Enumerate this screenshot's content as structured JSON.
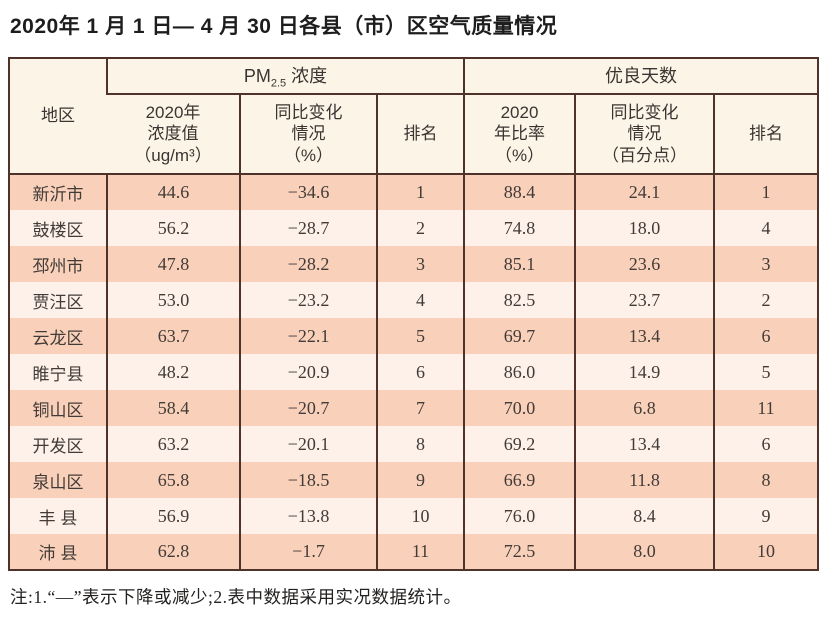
{
  "title": "2020年 1 月 1 日— 4 月 30 日各县（市）区空气质量情况",
  "footnote": "注:1.“—”表示下降或减少;2.表中数据采用实况数据统计。",
  "colors": {
    "border": "#4f332a",
    "header_bg": "#fcf4e6",
    "row_odd_bg": "#f9d0b9",
    "row_even_bg": "#fdf1e9"
  },
  "table": {
    "region_header": "地区",
    "pm25_group": {
      "prefix": "PM",
      "sub": "2.5",
      "suffix": " 浓度"
    },
    "good_days_group": "优良天数",
    "sub_headers": {
      "pm_value": "2020年\n浓度值\n（ug/m³）",
      "pm_change": "同比变化\n情况\n（%）",
      "pm_rank": "排名",
      "gd_ratio": "2020\n年比率\n（%）",
      "gd_change": "同比变化\n情况\n（百分点）",
      "gd_rank": "排名"
    },
    "rows": [
      {
        "region": "新沂市",
        "pm": "44.6",
        "pm_chg": "−34.6",
        "pm_rank": "1",
        "gd": "88.4",
        "gd_chg": "24.1",
        "gd_rank": "1"
      },
      {
        "region": "鼓楼区",
        "pm": "56.2",
        "pm_chg": "−28.7",
        "pm_rank": "2",
        "gd": "74.8",
        "gd_chg": "18.0",
        "gd_rank": "4"
      },
      {
        "region": "邳州市",
        "pm": "47.8",
        "pm_chg": "−28.2",
        "pm_rank": "3",
        "gd": "85.1",
        "gd_chg": "23.6",
        "gd_rank": "3"
      },
      {
        "region": "贾汪区",
        "pm": "53.0",
        "pm_chg": "−23.2",
        "pm_rank": "4",
        "gd": "82.5",
        "gd_chg": "23.7",
        "gd_rank": "2"
      },
      {
        "region": "云龙区",
        "pm": "63.7",
        "pm_chg": "−22.1",
        "pm_rank": "5",
        "gd": "69.7",
        "gd_chg": "13.4",
        "gd_rank": "6"
      },
      {
        "region": "睢宁县",
        "pm": "48.2",
        "pm_chg": "−20.9",
        "pm_rank": "6",
        "gd": "86.0",
        "gd_chg": "14.9",
        "gd_rank": "5"
      },
      {
        "region": "铜山区",
        "pm": "58.4",
        "pm_chg": "−20.7",
        "pm_rank": "7",
        "gd": "70.0",
        "gd_chg": "6.8",
        "gd_rank": "11"
      },
      {
        "region": "开发区",
        "pm": "63.2",
        "pm_chg": "−20.1",
        "pm_rank": "8",
        "gd": "69.2",
        "gd_chg": "13.4",
        "gd_rank": "6"
      },
      {
        "region": "泉山区",
        "pm": "65.8",
        "pm_chg": "−18.5",
        "pm_rank": "9",
        "gd": "66.9",
        "gd_chg": "11.8",
        "gd_rank": "8"
      },
      {
        "region": "丰 县",
        "pm": "56.9",
        "pm_chg": "−13.8",
        "pm_rank": "10",
        "gd": "76.0",
        "gd_chg": "8.4",
        "gd_rank": "9"
      },
      {
        "region": "沛 县",
        "pm": "62.8",
        "pm_chg": "−1.7",
        "pm_rank": "11",
        "gd": "72.5",
        "gd_chg": "8.0",
        "gd_rank": "10"
      }
    ]
  }
}
